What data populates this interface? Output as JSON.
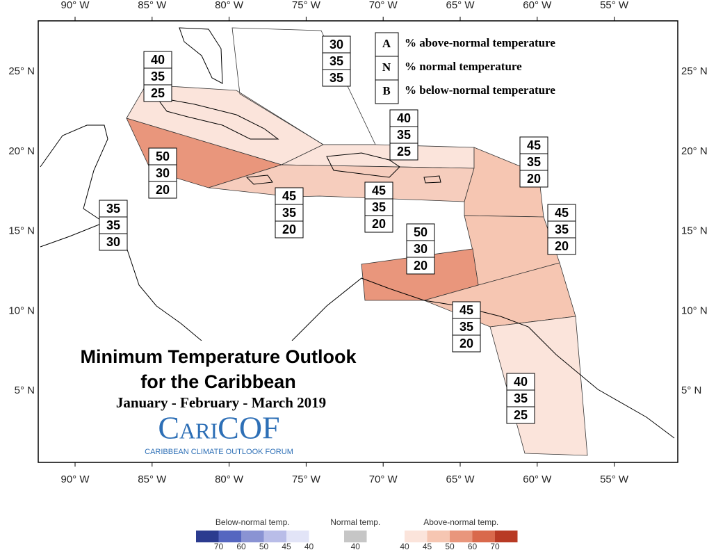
{
  "title": "Minimum Temperature Outlook",
  "subtitle": "for the Caribbean",
  "period": "January - February - March 2019",
  "logo": {
    "name": "CariCOF",
    "tagline": "CARIBBEAN CLIMATE OUTLOOK FORUM"
  },
  "lon_labels": [
    "90° W",
    "85° W",
    "80° W",
    "75° W",
    "70° W",
    "65° W",
    "60° W",
    "55° W"
  ],
  "lat_labels": [
    "25° N",
    "20° N",
    "15° N",
    "10° N",
    "5° N"
  ],
  "key": [
    {
      "letter": "A",
      "text": "% above-normal temperature"
    },
    {
      "letter": "N",
      "text": "% normal temperature"
    },
    {
      "letter": "B",
      "text": "% below-normal temperature"
    }
  ],
  "regions": [
    {
      "A": 40,
      "N": 35,
      "B": 25
    },
    {
      "A": 30,
      "N": 35,
      "B": 35
    },
    {
      "A": 40,
      "N": 35,
      "B": 25
    },
    {
      "A": 50,
      "N": 30,
      "B": 20
    },
    {
      "A": 45,
      "N": 35,
      "B": 20
    },
    {
      "A": 35,
      "N": 35,
      "B": 30
    },
    {
      "A": 45,
      "N": 35,
      "B": 20
    },
    {
      "A": 45,
      "N": 35,
      "B": 20
    },
    {
      "A": 45,
      "N": 35,
      "B": 20
    },
    {
      "A": 50,
      "N": 30,
      "B": 20
    },
    {
      "A": 45,
      "N": 35,
      "B": 20
    },
    {
      "A": 40,
      "N": 35,
      "B": 25
    }
  ],
  "color_legend": {
    "below": {
      "title": "Below-normal temp.",
      "ticks": [
        70,
        60,
        50,
        45,
        40
      ]
    },
    "normal": {
      "title": "Normal temp.",
      "ticks": [
        40
      ]
    },
    "above": {
      "title": "Above-normal temp.",
      "ticks": [
        40,
        45,
        50,
        60,
        70
      ]
    }
  }
}
